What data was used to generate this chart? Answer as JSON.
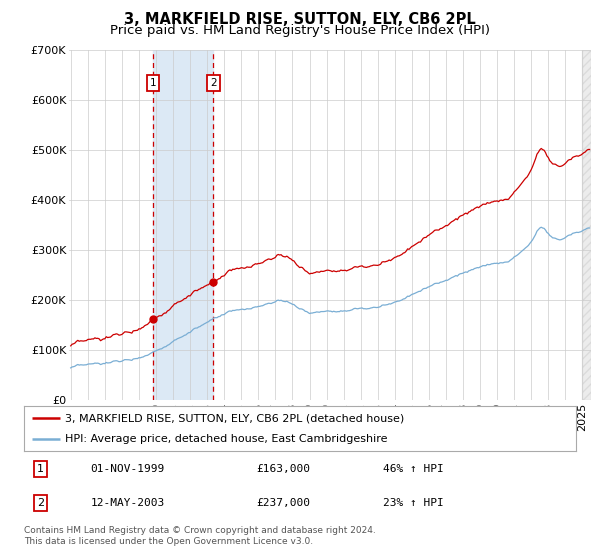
{
  "title": "3, MARKFIELD RISE, SUTTON, ELY, CB6 2PL",
  "subtitle": "Price paid vs. HM Land Registry's House Price Index (HPI)",
  "ylim": [
    0,
    700000
  ],
  "yticks": [
    0,
    100000,
    200000,
    300000,
    400000,
    500000,
    600000,
    700000
  ],
  "ytick_labels": [
    "£0",
    "£100K",
    "£200K",
    "£300K",
    "£400K",
    "£500K",
    "£600K",
    "£700K"
  ],
  "xlim_start": 1994.9,
  "xlim_end": 2025.5,
  "x_years": [
    1995,
    1996,
    1997,
    1998,
    1999,
    2000,
    2001,
    2002,
    2003,
    2004,
    2005,
    2006,
    2007,
    2008,
    2009,
    2010,
    2011,
    2012,
    2013,
    2014,
    2015,
    2016,
    2017,
    2018,
    2019,
    2020,
    2021,
    2022,
    2023,
    2024,
    2025
  ],
  "transaction1_date": "01-NOV-1999",
  "transaction1_price": 163000,
  "transaction1_hpi": "46% ↑ HPI",
  "transaction1_x": 1999.83,
  "transaction2_date": "12-MAY-2003",
  "transaction2_price": 237000,
  "transaction2_hpi": "23% ↑ HPI",
  "transaction2_x": 2003.36,
  "red_color": "#cc0000",
  "blue_color": "#7aaed4",
  "shade_color": "#dce9f5",
  "grid_color": "#cccccc",
  "bg_color": "#ffffff",
  "legend_red": "3, MARKFIELD RISE, SUTTON, ELY, CB6 2PL (detached house)",
  "legend_blue": "HPI: Average price, detached house, East Cambridgeshire",
  "footer": "Contains HM Land Registry data © Crown copyright and database right 2024.\nThis data is licensed under the Open Government Licence v3.0.",
  "title_fs": 10.5,
  "subtitle_fs": 9.5,
  "tick_fs": 8,
  "legend_fs": 8,
  "footer_fs": 6.5
}
